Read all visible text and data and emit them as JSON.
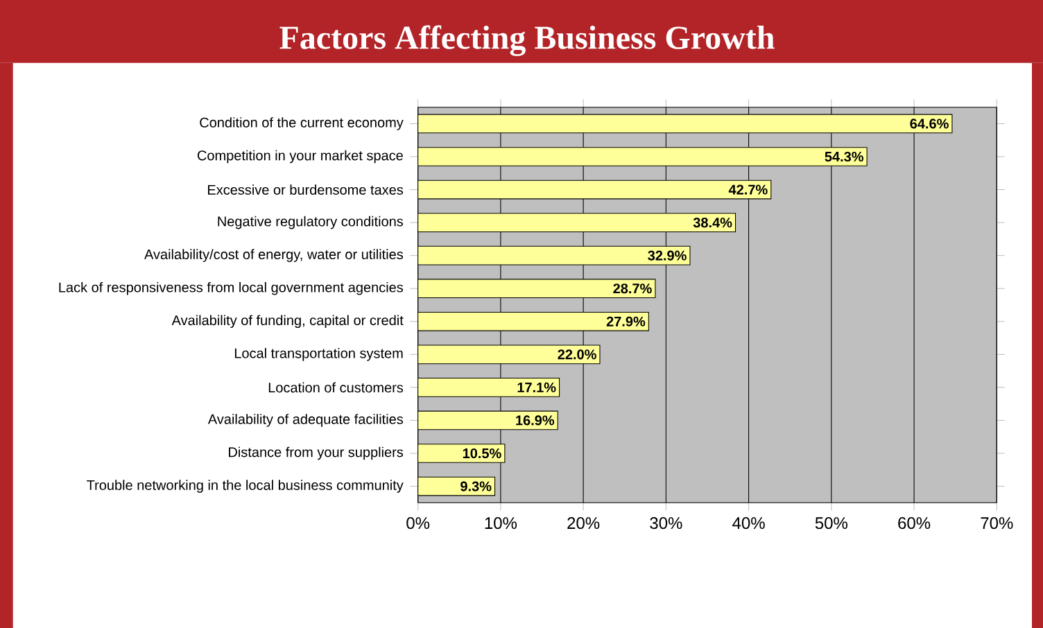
{
  "chart_data": {
    "type": "bar",
    "orientation": "horizontal",
    "title": "Factors Affecting Business Growth",
    "categories": [
      "Condition of the current economy",
      "Competition in your market space",
      "Excessive or burdensome taxes",
      "Negative regulatory conditions",
      "Availability/cost of energy, water or utilities",
      "Lack of responsiveness from local government agencies",
      "Availability of funding, capital or credit",
      "Local transportation system",
      "Location of customers",
      "Availability of adequate facilities",
      "Distance from your suppliers",
      "Trouble networking in the local business community"
    ],
    "values": [
      64.6,
      54.3,
      42.7,
      38.4,
      32.9,
      28.7,
      27.9,
      22.0,
      17.1,
      16.9,
      10.5,
      9.3
    ],
    "value_labels": [
      "64.6%",
      "54.3%",
      "42.7%",
      "38.4%",
      "32.9%",
      "28.7%",
      "27.9%",
      "22.0%",
      "17.1%",
      "16.9%",
      "10.5%",
      "9.3%"
    ],
    "color": "#ffff99",
    "xlim": [
      0,
      70
    ],
    "xticks": [
      {
        "value": 0,
        "label": "0%"
      },
      {
        "value": 10,
        "label": "10%"
      },
      {
        "value": 20,
        "label": "20%"
      },
      {
        "value": 30,
        "label": "30%"
      },
      {
        "value": 40,
        "label": "40%"
      },
      {
        "value": 50,
        "label": "50%"
      },
      {
        "value": 60,
        "label": "60%"
      },
      {
        "value": 70,
        "label": "70%"
      }
    ],
    "grid": "x"
  }
}
